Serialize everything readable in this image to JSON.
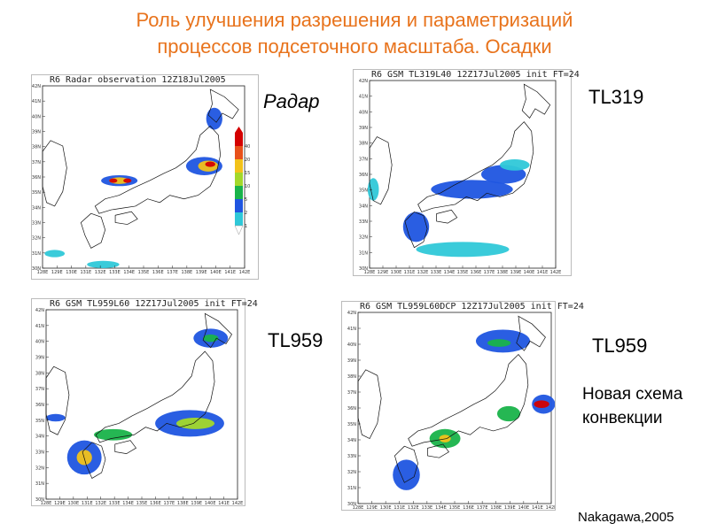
{
  "slide": {
    "title_line1": "Роль улучшения разрешения и параметризаций",
    "title_line2": "процессов подсеточного масштаба. Осадки",
    "label_radar": "Радар",
    "label_tl319": "TL319",
    "label_tl959_a": "TL959",
    "label_tl959_b": "TL959",
    "new_scheme_line1": "Новая схема",
    "new_scheme_line2": "конвекции",
    "credit": "Nakagawa,2005"
  },
  "panels": [
    {
      "title": "R6 Radar observation 12Z18Jul2005"
    },
    {
      "title": "R6 GSM TL319L40 12Z17Jul2005 init FT=24"
    },
    {
      "title": "R6 GSM TL959L60 12Z17Jul2005 init FT=24"
    },
    {
      "title": "R6 GSM TL959L60DCP 12Z17Jul2005 init FT=24"
    }
  ],
  "lat_ticks": [
    "42N",
    "41N",
    "40N",
    "39N",
    "38N",
    "37N",
    "36N",
    "35N",
    "34N",
    "33N",
    "32N",
    "31N",
    "30N"
  ],
  "lon_ticks": [
    "128E",
    "129E",
    "130E",
    "131E",
    "132E",
    "133E",
    "134E",
    "135E",
    "136E",
    "137E",
    "138E",
    "139E",
    "140E",
    "141E",
    "142E"
  ],
  "colorbar": {
    "labels": [
      "40",
      "20",
      "15",
      "10",
      "5",
      "2",
      "1"
    ],
    "colors": [
      "#d40000",
      "#e8511b",
      "#f2c21a",
      "#a3d82a",
      "#19b34a",
      "#1f55e0",
      "#2fc8d8"
    ]
  }
}
